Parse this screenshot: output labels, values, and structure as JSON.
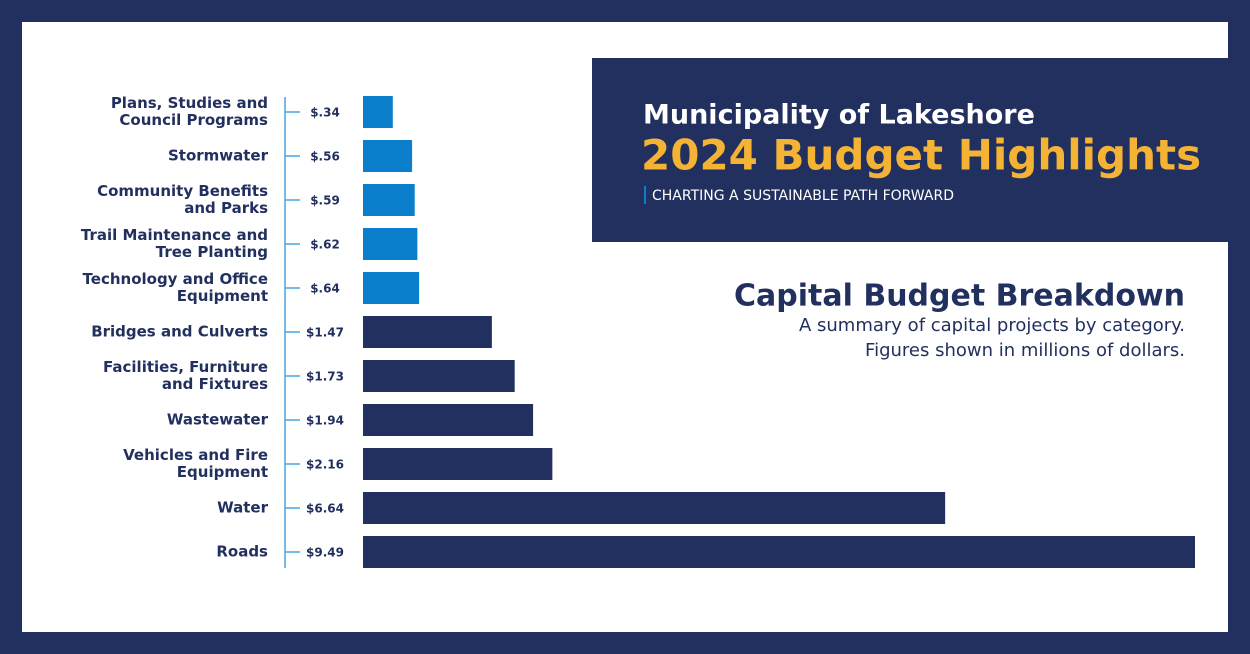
{
  "chart_data": {
    "type": "bar",
    "orientation": "horizontal",
    "title": "Capital Budget Breakdown",
    "subtitle": [
      "A summary of capital projects by category.",
      "Figures shown in millions of dollars."
    ],
    "header": {
      "organization": "Municipality of Lakeshore",
      "headline": "2024 Budget Highlights",
      "tagline": "CHARTING A SUSTAINABLE PATH FORWARD"
    },
    "categories": [
      "Plans, Studies and\nCouncil Programs",
      "Stormwater",
      "Community Benefits\nand Parks",
      "Trail Maintenance and\nTree Planting",
      "Technology and Office\nEquipment",
      "Bridges and Culverts",
      "Facilities, Furniture\nand Fixtures",
      "Wastewater",
      "Vehicles and Fire\nEquipment",
      "Water",
      "Roads"
    ],
    "values": [
      0.34,
      0.56,
      0.59,
      0.62,
      0.64,
      1.47,
      1.73,
      1.94,
      2.16,
      6.64,
      9.49
    ],
    "value_labels": [
      "$.34",
      "$.56",
      "$.59",
      "$.62",
      "$.64",
      "$1.47",
      "$1.73",
      "$1.94",
      "$2.16",
      "$6.64",
      "$9.49"
    ],
    "colors": [
      "#0b7fcc",
      "#0b7fcc",
      "#0b7fcc",
      "#0b7fcc",
      "#0b7fcc",
      "#22305f",
      "#22305f",
      "#22305f",
      "#22305f",
      "#22305f",
      "#22305f"
    ]
  }
}
